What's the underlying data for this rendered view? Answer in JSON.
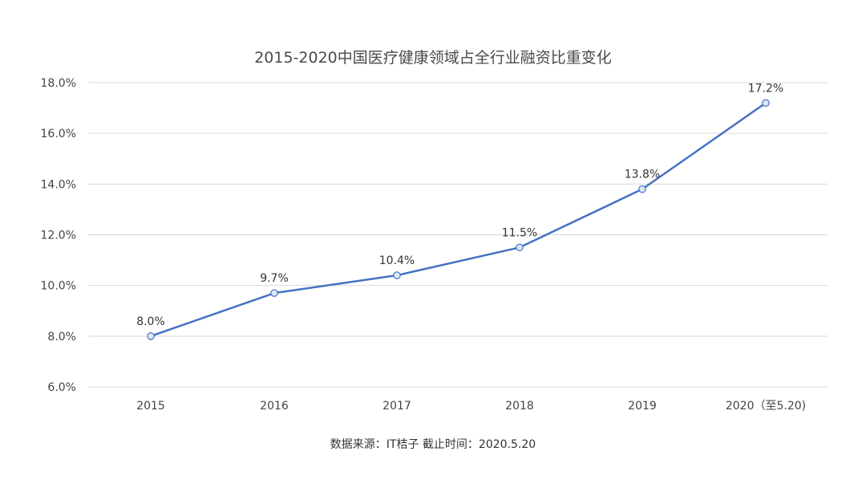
{
  "chart_data": {
    "type": "line",
    "title": "2015-2020中国医疗健康领域占全行业融资比重变化",
    "categories": [
      "2015",
      "2016",
      "2017",
      "2018",
      "2019",
      "2020（至5.20)"
    ],
    "series": [
      {
        "values": [
          8.0,
          9.7,
          10.4,
          11.5,
          13.8,
          17.2
        ],
        "labels": [
          "8.0%",
          "9.7%",
          "10.4%",
          "11.5%",
          "13.8%",
          "17.2%"
        ]
      }
    ],
    "ylim": [
      6,
      18
    ],
    "y_ticks": [
      6,
      8,
      10,
      12,
      14,
      16,
      18
    ],
    "y_tick_labels": [
      "6.0%",
      "8.0%",
      "10.0%",
      "12.0%",
      "14.0%",
      "16.0%",
      "18.0%"
    ],
    "grid": true,
    "xlabel": "",
    "ylabel": "",
    "line_color": "#4472c4",
    "point_fill": "#dce6f4",
    "point_stroke": "#4472c4"
  },
  "footer": {
    "source": "数据来源：IT桔子  截止时间：2020.5.20"
  }
}
